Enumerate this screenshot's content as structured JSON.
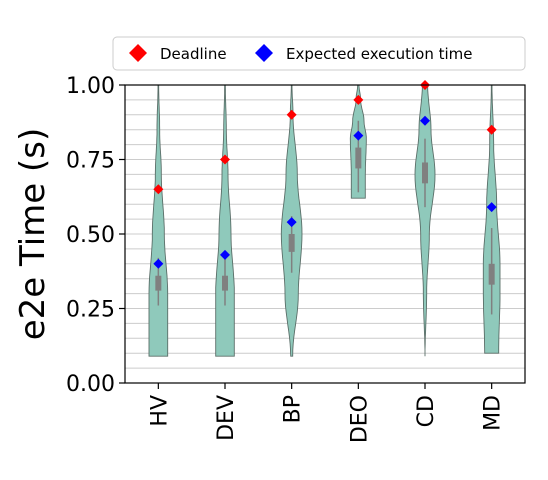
{
  "chart_data": {
    "type": "violin",
    "title": "",
    "xlabel": "",
    "ylabel": "e2e Time (s)",
    "ylim": [
      0.0,
      1.0
    ],
    "yticks": [
      "0.00",
      "0.25",
      "0.50",
      "0.75",
      "1.00"
    ],
    "grid": "horizontal",
    "legend_position": "top",
    "colors": {
      "violin_fill": "#8fc9bb",
      "violin_edge": "#5a6e68",
      "deadline": "#ff0000",
      "expected": "#0000ff",
      "box": "#808080",
      "grid": "#cccccc"
    },
    "legend": [
      {
        "label": "Deadline",
        "marker": "diamond",
        "color": "#ff0000"
      },
      {
        "label": "Expected execution time",
        "marker": "diamond",
        "color": "#0000ff"
      }
    ],
    "categories": [
      "HV",
      "DEV",
      "BP",
      "DEO",
      "CD",
      "MD"
    ],
    "violins": [
      {
        "category": "HV",
        "min": 0.09,
        "max": 1.0,
        "whisker": [
          0.26,
          0.42
        ],
        "q1": 0.31,
        "q3": 0.36,
        "median": 0.33,
        "shape": [
          [
            0.09,
            0.28
          ],
          [
            0.3,
            0.28
          ],
          [
            0.5,
            0.18
          ],
          [
            0.7,
            0.09
          ],
          [
            0.85,
            0.04
          ],
          [
            1.0,
            0.01
          ]
        ]
      },
      {
        "category": "DEV",
        "min": 0.09,
        "max": 1.0,
        "whisker": [
          0.26,
          0.43
        ],
        "q1": 0.31,
        "q3": 0.36,
        "median": 0.33,
        "shape": [
          [
            0.09,
            0.28
          ],
          [
            0.3,
            0.28
          ],
          [
            0.5,
            0.18
          ],
          [
            0.7,
            0.09
          ],
          [
            0.85,
            0.04
          ],
          [
            1.0,
            0.01
          ]
        ]
      },
      {
        "category": "BP",
        "min": 0.09,
        "max": 1.0,
        "whisker": [
          0.37,
          0.56
        ],
        "q1": 0.44,
        "q3": 0.5,
        "median": 0.47,
        "shape": [
          [
            0.09,
            0.03
          ],
          [
            0.3,
            0.2
          ],
          [
            0.5,
            0.31
          ],
          [
            0.7,
            0.17
          ],
          [
            0.9,
            0.04
          ],
          [
            1.0,
            0.01
          ]
        ]
      },
      {
        "category": "DEO",
        "min": 0.62,
        "max": 1.0,
        "whisker": [
          0.64,
          0.88
        ],
        "q1": 0.72,
        "q3": 0.79,
        "median": 0.75,
        "shape": [
          [
            0.62,
            0.21
          ],
          [
            0.7,
            0.21
          ],
          [
            0.82,
            0.24
          ],
          [
            0.88,
            0.17
          ],
          [
            0.95,
            0.07
          ],
          [
            1.0,
            0.02
          ]
        ]
      },
      {
        "category": "CD",
        "min": 0.09,
        "max": 1.0,
        "whisker": [
          0.59,
          0.82
        ],
        "q1": 0.67,
        "q3": 0.74,
        "median": 0.7,
        "shape": [
          [
            0.09,
            0.0
          ],
          [
            0.3,
            0.05
          ],
          [
            0.5,
            0.13
          ],
          [
            0.7,
            0.3
          ],
          [
            0.85,
            0.18
          ],
          [
            1.0,
            0.08
          ]
        ]
      },
      {
        "category": "MD",
        "min": 0.1,
        "max": 1.0,
        "whisker": [
          0.23,
          0.52
        ],
        "q1": 0.33,
        "q3": 0.4,
        "median": 0.37,
        "shape": [
          [
            0.1,
            0.21
          ],
          [
            0.3,
            0.25
          ],
          [
            0.4,
            0.25
          ],
          [
            0.6,
            0.15
          ],
          [
            0.8,
            0.06
          ],
          [
            1.0,
            0.01
          ]
        ]
      }
    ],
    "series": [
      {
        "name": "Deadline",
        "values": [
          0.65,
          0.75,
          0.9,
          0.95,
          1.0,
          0.85
        ]
      },
      {
        "name": "Expected execution time",
        "values": [
          0.4,
          0.43,
          0.54,
          0.83,
          0.88,
          0.59
        ]
      }
    ]
  }
}
